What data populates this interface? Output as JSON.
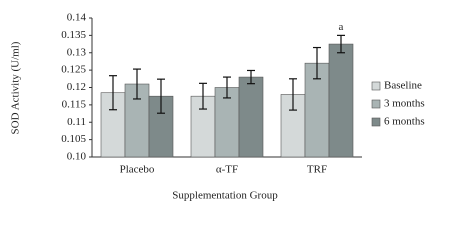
{
  "chart_data": {
    "type": "bar",
    "y_label": "SOD Activity (U/ml)",
    "x_label": "Supplementation Group",
    "categories": [
      "Placebo",
      "α-TF",
      "TRF"
    ],
    "series": [
      {
        "name": "Baseline",
        "color": "#d4d9d9",
        "values": [
          0.1185,
          0.1175,
          0.118
        ],
        "errors": [
          0.0049,
          0.0037,
          0.0045
        ]
      },
      {
        "name": "3 months",
        "color": "#a9b4b4",
        "values": [
          0.121,
          0.12,
          0.127
        ],
        "errors": [
          0.0043,
          0.003,
          0.0045
        ]
      },
      {
        "name": "6 months",
        "color": "#7e8a8a",
        "values": [
          0.1175,
          0.123,
          0.1325
        ],
        "errors": [
          0.0049,
          0.0019,
          0.0025
        ]
      }
    ],
    "annotations": [
      {
        "text": "a",
        "series": 2,
        "category": 2
      }
    ],
    "ylim": [
      0.1,
      0.14
    ],
    "yticks": [
      {
        "value": 0.1,
        "label": "0.10"
      },
      0.105,
      0.11,
      0.115,
      0.12,
      0.125,
      0.13,
      0.135,
      0.14
    ],
    "legend": "right"
  }
}
